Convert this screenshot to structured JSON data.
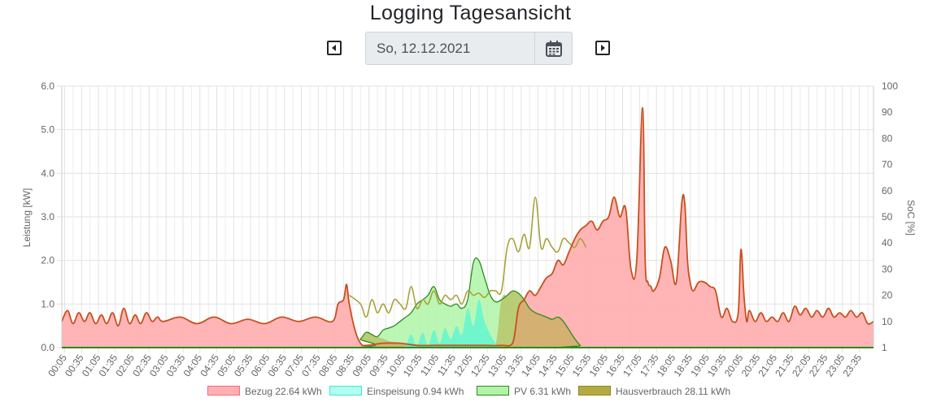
{
  "title": "Logging Tagesansicht",
  "date": {
    "value": "So, 12.12.2021"
  },
  "icons": {
    "prev": "caret-left-square-icon",
    "next": "caret-right-square-icon",
    "calendar": "calendar-icon"
  },
  "colors": {
    "bezug": "#ffb1b1",
    "bezug_line": "#c8501e",
    "einspeisung": "#b0fff0",
    "pv": "#b0f4a8",
    "pv_line": "#2e8b1e",
    "hausverbrauch": "#b4ab40"
  },
  "chart_data": {
    "type": "area",
    "y_left": {
      "label": "Leistung [kW]",
      "min": 0,
      "max": 6,
      "ticks": [
        "0.0",
        "1.0",
        "2.0",
        "3.0",
        "4.0",
        "5.0",
        "6.0"
      ]
    },
    "y_right": {
      "label": "SoC [%]",
      "ticks": [
        "1",
        "10",
        "20",
        "30",
        "40",
        "50",
        "60",
        "70",
        "80",
        "90",
        "100"
      ]
    },
    "x_tick_labels": [
      "00:05",
      "00:35",
      "01:05",
      "01:35",
      "02:05",
      "02:35",
      "03:05",
      "03:35",
      "04:05",
      "04:35",
      "05:05",
      "05:35",
      "06:05",
      "06:35",
      "07:05",
      "07:35",
      "08:05",
      "08:35",
      "09:05",
      "09:35",
      "10:05",
      "10:35",
      "11:05",
      "11:35",
      "12:05",
      "12:35",
      "13:05",
      "13:35",
      "14:05",
      "14:35",
      "15:05",
      "15:35",
      "16:05",
      "16:35",
      "17:05",
      "17:35",
      "18:05",
      "18:35",
      "19:05",
      "19:35",
      "20:05",
      "20:35",
      "21:05",
      "21:35",
      "22:05",
      "22:35",
      "23:05",
      "23:35"
    ],
    "grid": true,
    "legend_position": "bottom",
    "series": [
      {
        "name": "Bezug 22.64 kWh",
        "key": "bezug",
        "x": [
          0,
          0.17,
          0.33,
          0.5,
          0.67,
          0.83,
          1,
          1.17,
          1.33,
          1.5,
          1.67,
          1.83,
          2,
          2.17,
          2.33,
          2.5,
          2.67,
          2.83,
          3,
          3.5,
          4,
          4.5,
          5,
          5.5,
          6,
          6.5,
          7,
          7.5,
          8,
          8.17,
          8.33,
          8.42,
          8.5,
          8.67,
          8.83,
          9,
          9.5,
          10,
          10.5,
          11,
          11.5,
          12,
          12.5,
          13,
          13.33,
          13.5,
          13.67,
          13.83,
          14,
          14.17,
          14.33,
          14.5,
          14.67,
          14.83,
          15,
          15.17,
          15.33,
          15.5,
          15.67,
          15.83,
          16,
          16.17,
          16.33,
          16.5,
          16.67,
          16.83,
          17,
          17.17,
          17.25,
          17.33,
          17.42,
          17.5,
          17.67,
          17.83,
          18,
          18.17,
          18.33,
          18.42,
          18.5,
          18.58,
          18.67,
          18.83,
          19,
          19.17,
          19.33,
          19.5,
          19.67,
          19.83,
          20,
          20.08,
          20.17,
          20.25,
          20.33,
          20.5,
          20.67,
          20.83,
          21,
          21.17,
          21.33,
          21.5,
          21.67,
          21.83,
          22,
          22.17,
          22.33,
          22.5,
          22.67,
          22.83,
          23,
          23.17,
          23.33,
          23.5,
          23.67,
          23.83,
          24
        ],
        "y": [
          0.6,
          0.85,
          0.55,
          0.8,
          0.6,
          0.8,
          0.55,
          0.75,
          0.55,
          0.8,
          0.5,
          0.9,
          0.55,
          0.75,
          0.55,
          0.8,
          0.6,
          0.7,
          0.6,
          0.7,
          0.55,
          0.7,
          0.55,
          0.65,
          0.55,
          0.7,
          0.6,
          0.7,
          0.6,
          1.0,
          1.1,
          1.45,
          1.0,
          0.4,
          0.1,
          0.05,
          0.1,
          0.1,
          0.05,
          0.05,
          0.05,
          0.05,
          0.05,
          0.05,
          0.1,
          0.9,
          1.1,
          1.3,
          1.2,
          1.4,
          1.6,
          1.7,
          2.0,
          1.9,
          2.2,
          2.5,
          2.7,
          2.8,
          2.9,
          2.7,
          2.9,
          3.0,
          3.45,
          3.0,
          3.2,
          1.8,
          2.0,
          5.5,
          2.0,
          1.5,
          1.4,
          1.3,
          1.6,
          2.3,
          2.0,
          1.5,
          3.3,
          3.3,
          2.0,
          1.5,
          1.3,
          1.5,
          1.5,
          1.4,
          1.3,
          0.7,
          0.9,
          0.6,
          0.8,
          2.25,
          1.2,
          0.6,
          0.85,
          0.6,
          0.8,
          0.6,
          0.7,
          0.6,
          0.8,
          0.6,
          0.95,
          0.75,
          0.9,
          0.7,
          0.85,
          0.7,
          0.9,
          0.7,
          0.8,
          0.7,
          0.85,
          0.7,
          0.8,
          0.55,
          0.6
        ]
      },
      {
        "name": "Einspeisung 0.94 kWh",
        "key": "einspeisung",
        "x": [
          10,
          10.17,
          10.33,
          10.5,
          10.67,
          10.83,
          11,
          11.17,
          11.33,
          11.5,
          11.67,
          11.83,
          12,
          12.17,
          12.33,
          12.5,
          12.67,
          12.83,
          13,
          13.5,
          24
        ],
        "y": [
          0,
          0.05,
          0.3,
          0.05,
          0.35,
          0.05,
          0.4,
          0.1,
          0.45,
          0.2,
          0.5,
          0.3,
          0.9,
          0.5,
          1.1,
          0.6,
          0.3,
          0.1,
          0,
          0,
          0
        ]
      },
      {
        "name": "PV 6.31 kWh",
        "key": "pv",
        "x": [
          0,
          8.5,
          8.83,
          9,
          9.17,
          9.33,
          9.5,
          9.67,
          9.83,
          10,
          10.17,
          10.33,
          10.5,
          10.67,
          10.83,
          11,
          11.17,
          11.33,
          11.5,
          11.67,
          11.83,
          12,
          12.17,
          12.33,
          12.5,
          12.67,
          12.83,
          13,
          13.17,
          13.33,
          13.5,
          13.67,
          13.83,
          14,
          14.17,
          14.33,
          14.5,
          14.67,
          14.83,
          15,
          15.17,
          15.33,
          15.5,
          24
        ],
        "y": [
          0,
          0,
          0.2,
          0.35,
          0.3,
          0.25,
          0.4,
          0.45,
          0.5,
          0.6,
          0.7,
          0.8,
          1.0,
          1.1,
          1.2,
          1.4,
          1.1,
          1.0,
          0.95,
          1.0,
          0.9,
          1.1,
          1.95,
          2.0,
          1.6,
          1.2,
          1.05,
          1.1,
          1.2,
          1.3,
          1.25,
          1.1,
          0.9,
          0.8,
          0.75,
          0.7,
          0.65,
          0.7,
          0.6,
          0.4,
          0.2,
          0.05,
          0,
          0
        ]
      },
      {
        "name": "Hausverbrauch 28.11 kWh",
        "key": "hausverbrauch",
        "x": [
          0,
          8.5,
          8.83,
          9,
          9.17,
          9.33,
          9.5,
          9.67,
          9.83,
          10,
          10.17,
          10.33,
          10.5,
          10.67,
          10.83,
          11,
          11.17,
          11.33,
          11.5,
          11.67,
          11.83,
          12,
          12.17,
          12.33,
          12.5,
          12.67,
          12.83,
          13,
          13.17,
          13.33,
          13.5,
          13.67,
          13.83,
          14,
          14.17,
          14.33,
          14.5,
          14.67,
          14.83,
          15,
          15.17,
          15.33,
          15.5,
          24
        ],
        "y": [
          0,
          0,
          0.2,
          0.35,
          0.3,
          0.25,
          0.2,
          0.15,
          0.1,
          0.1,
          0.08,
          0.05,
          0.05,
          0.05,
          0.05,
          0.05,
          0.05,
          0.05,
          0.05,
          0.05,
          0.05,
          0.05,
          0.05,
          0.05,
          0.05,
          0.05,
          0.05,
          1.1,
          1.2,
          1.3,
          1.25,
          1.1,
          0.9,
          0.8,
          0.75,
          0.7,
          0.65,
          0.7,
          0.6,
          0.4,
          0.2,
          0.05,
          0,
          0
        ]
      },
      {
        "name": "Hausverbrauch line",
        "key": "hv_line",
        "x": [
          8.5,
          8.83,
          9,
          9.17,
          9.33,
          9.5,
          9.67,
          9.83,
          10,
          10.17,
          10.33,
          10.5,
          10.67,
          10.83,
          11,
          11.17,
          11.33,
          11.5,
          11.67,
          11.83,
          12,
          12.17,
          12.33,
          12.5,
          12.67,
          12.83,
          13,
          13.17,
          13.33,
          13.5,
          13.67,
          13.83,
          14,
          14.17,
          14.33,
          14.5,
          14.67,
          14.83,
          15,
          15.17,
          15.33,
          15.5
        ],
        "y": [
          1.2,
          1.0,
          0.7,
          1.1,
          0.8,
          1.0,
          0.8,
          1.1,
          1.0,
          0.9,
          1.4,
          0.9,
          1.1,
          1.0,
          1.3,
          1.0,
          1.2,
          1.1,
          1.2,
          1.0,
          1.3,
          1.2,
          1.25,
          1.15,
          1.3,
          1.3,
          1.3,
          2.3,
          2.5,
          2.2,
          2.6,
          2.3,
          3.45,
          2.3,
          2.5,
          2.3,
          2.2,
          2.5,
          2.4,
          2.3,
          2.5,
          2.3
        ]
      }
    ]
  },
  "legend": [
    {
      "label": "Bezug 22.64 kWh",
      "key": "bezug"
    },
    {
      "label": "Einspeisung 0.94 kWh",
      "key": "einspeisung"
    },
    {
      "label": "PV 6.31 kWh",
      "key": "pv"
    },
    {
      "label": "Hausverbrauch 28.11 kWh",
      "key": "hausverbrauch"
    }
  ]
}
